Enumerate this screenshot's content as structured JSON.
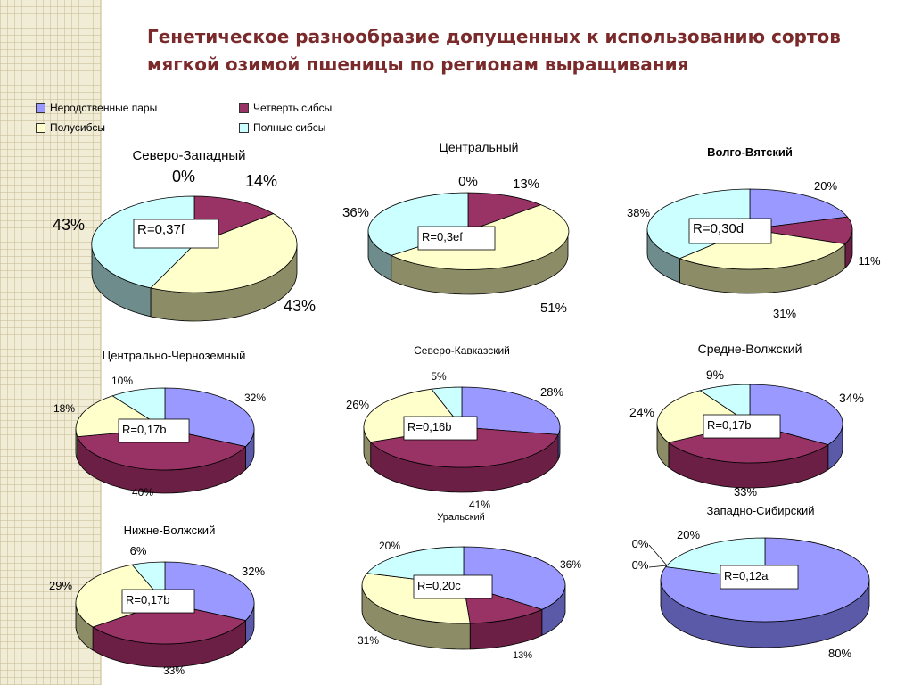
{
  "title": "Генетическое разнообразие допущенных к использованию сортов мягкой озимой пшеницы по регионам выращивания",
  "colors": {
    "title": "#7a2a2a"
  },
  "legend": [
    {
      "label": "Неродственные пары",
      "color": "#9999ff"
    },
    {
      "label": "Четверть сибсы",
      "color": "#993366"
    },
    {
      "label": "Полусибсы",
      "color": "#ffffcc"
    },
    {
      "label": "Полные сибсы",
      "color": "#ccffff"
    }
  ],
  "chart_data": [
    {
      "type": "pie",
      "title": "Северо-Западный",
      "r_value": "R=0,37f",
      "slices": [
        {
          "label": "Неродственные пары",
          "value": 0,
          "text": "0%"
        },
        {
          "label": "Четверть сибсы",
          "value": 14,
          "text": "14%"
        },
        {
          "label": "Полусибсы",
          "value": 43,
          "text": "43%"
        },
        {
          "label": "Полные сибсы",
          "value": 43,
          "text": "43%"
        }
      ]
    },
    {
      "type": "pie",
      "title": "Центральный",
      "r_value": "R=0,3ef",
      "slices": [
        {
          "label": "Неродственные пары",
          "value": 0,
          "text": "0%"
        },
        {
          "label": "Четверть сибсы",
          "value": 13,
          "text": "13%"
        },
        {
          "label": "Полусибсы",
          "value": 51,
          "text": "51%"
        },
        {
          "label": "Полные сибсы",
          "value": 36,
          "text": "36%"
        }
      ]
    },
    {
      "type": "pie",
      "title": "Волго-Вятский",
      "r_value": "R=0,30d",
      "slices": [
        {
          "label": "Неродственные пары",
          "value": 20,
          "text": "20%"
        },
        {
          "label": "Четверть сибсы",
          "value": 11,
          "text": "11%"
        },
        {
          "label": "Полусибсы",
          "value": 31,
          "text": "31%"
        },
        {
          "label": "Полные сибсы",
          "value": 38,
          "text": "38%"
        }
      ]
    },
    {
      "type": "pie",
      "title": "Центрально-Черноземный",
      "r_value": "R=0,17b",
      "slices": [
        {
          "label": "Неродственные пары",
          "value": 32,
          "text": "32%"
        },
        {
          "label": "Четверть сибсы",
          "value": 40,
          "text": "40%"
        },
        {
          "label": "Полусибсы",
          "value": 18,
          "text": "18%"
        },
        {
          "label": "Полные сибсы",
          "value": 10,
          "text": "10%"
        }
      ]
    },
    {
      "type": "pie",
      "title": "Северо-Кавказский",
      "r_value": "R=0,16b",
      "slices": [
        {
          "label": "Неродственные пары",
          "value": 28,
          "text": "28%"
        },
        {
          "label": "Четверть сибсы",
          "value": 41,
          "text": "41%"
        },
        {
          "label": "Полусибсы",
          "value": 26,
          "text": "26%"
        },
        {
          "label": "Полные сибсы",
          "value": 5,
          "text": "5%"
        }
      ]
    },
    {
      "type": "pie",
      "title": "Средне-Волжский",
      "r_value": "R=0,17b",
      "slices": [
        {
          "label": "Неродственные пары",
          "value": 34,
          "text": "34%"
        },
        {
          "label": "Четверть сибсы",
          "value": 33,
          "text": "33%"
        },
        {
          "label": "Полусибсы",
          "value": 24,
          "text": "24%"
        },
        {
          "label": "Полные сибсы",
          "value": 9,
          "text": "9%"
        }
      ]
    },
    {
      "type": "pie",
      "title": "Нижне-Волжский",
      "r_value": "R=0,17b",
      "slices": [
        {
          "label": "Неродственные пары",
          "value": 32,
          "text": "32%"
        },
        {
          "label": "Четверть сибсы",
          "value": 33,
          "text": "33%"
        },
        {
          "label": "Полусибсы",
          "value": 29,
          "text": "29%"
        },
        {
          "label": "Полные сибсы",
          "value": 6,
          "text": "6%"
        }
      ]
    },
    {
      "type": "pie",
      "title": "Уральский",
      "r_value": "R=0,20c",
      "slices": [
        {
          "label": "Неродственные пары",
          "value": 36,
          "text": "36%"
        },
        {
          "label": "Четверть сибсы",
          "value": 13,
          "text": "13%"
        },
        {
          "label": "Полусибсы",
          "value": 31,
          "text": "31%"
        },
        {
          "label": "Полные сибсы",
          "value": 20,
          "text": "20%"
        }
      ]
    },
    {
      "type": "pie",
      "title": "Западно-Сибирский",
      "r_value": "R=0,12a",
      "slices": [
        {
          "label": "Неродственные пары",
          "value": 80,
          "text": "80%"
        },
        {
          "label": "Четверть сибсы",
          "value": 0,
          "text": "0%"
        },
        {
          "label": "Полусибсы",
          "value": 0,
          "text": "0%"
        },
        {
          "label": "Полные сибсы",
          "value": 20,
          "text": "20%"
        }
      ]
    }
  ]
}
